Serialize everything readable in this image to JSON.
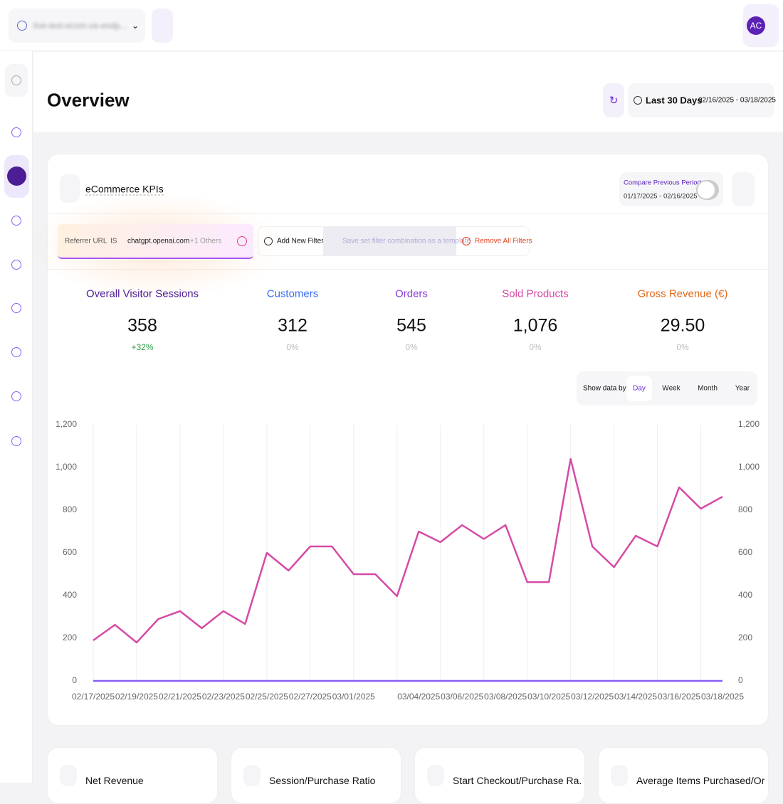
{
  "topbar": {
    "site": "live-test-ecom.va-endp...",
    "avatar": "AC"
  },
  "header": {
    "title": "Overview",
    "range": "Last 30 Days",
    "dates": "02/16/2025 - 03/18/2025"
  },
  "card": {
    "title": "eCommerce KPIs",
    "compare_label": "Compare Previous Period",
    "compare_dates": "01/17/2025 - 02/16/2025",
    "filter": {
      "field": "Referrer URL",
      "operator": "IS",
      "value": "chatgpt.openai.com",
      "more": "+1 Others"
    },
    "actions": [
      "Add New Filter",
      "Save set filter combination as a template",
      "Remove All Filters"
    ],
    "kpis": [
      {
        "label": "Overall Visitor Sessions",
        "value": "358",
        "change": "+32%",
        "color": "#4c1d95",
        "change_color": "#2e9e4a"
      },
      {
        "label": "Customers",
        "value": "312",
        "change": "0%",
        "color": "#3b6cf6",
        "change_color": "#bbbbbb"
      },
      {
        "label": "Orders",
        "value": "545",
        "change": "0%",
        "color": "#8b3fd9",
        "change_color": "#bbbbbb"
      },
      {
        "label": "Sold Products",
        "value": "1,076",
        "change": "0%",
        "color": "#d64aa6",
        "change_color": "#bbbbbb"
      },
      {
        "label": "Gross Revenue (€)",
        "value": "29.50",
        "change": "0%",
        "color": "#e06a1b",
        "change_color": "#bbbbbb"
      }
    ],
    "show_by_label": "Show data by:",
    "periods": [
      "Day",
      "Week",
      "Month",
      "Year"
    ],
    "active_period": 0
  },
  "chart_data": {
    "type": "line",
    "categories": [
      "02/17/2025",
      null,
      "02/19/2025",
      null,
      "02/21/2025",
      null,
      "02/23/2025",
      null,
      "02/25/2025",
      null,
      "02/27/2025",
      null,
      "03/01/2025",
      null,
      null,
      "03/04/2025",
      null,
      "03/06/2025",
      null,
      "03/08/2025",
      null,
      "03/10/2025",
      null,
      "03/12/2025",
      null,
      "03/14/2025",
      null,
      "03/16/2025",
      null,
      "03/18/2025"
    ],
    "series": [
      {
        "color": "#d64aa6",
        "values": [
          190,
          263,
          180,
          290,
          327,
          247,
          327,
          267,
          600,
          517,
          630,
          630,
          500,
          500,
          397,
          700,
          650,
          730,
          665,
          730,
          463,
          463,
          1040,
          630,
          533,
          680,
          630,
          907,
          807,
          863
        ]
      },
      {
        "color": "#8b5cf6",
        "values": [
          0,
          0,
          0,
          0,
          0,
          0,
          0,
          0,
          0,
          0,
          0,
          0,
          0,
          0,
          0,
          0,
          0,
          0,
          0,
          0,
          0,
          0,
          0,
          0,
          0,
          0,
          0,
          0,
          0,
          0
        ]
      }
    ],
    "ylim": [
      0,
      1200
    ],
    "yticks": [
      0,
      200,
      400,
      600,
      800,
      {
        "value": 1000,
        "label": "1,000"
      },
      {
        "value": 1200,
        "label": "1,200"
      }
    ],
    "y2lim": [
      0,
      1200
    ],
    "y2ticks": [
      0,
      200,
      400,
      600,
      800,
      {
        "value": 1000,
        "label": "1,000"
      },
      {
        "value": 1200,
        "label": "1,200"
      }
    ],
    "grid": true
  },
  "bottom_cards": [
    "Net Revenue",
    "Session/Purchase Ratio",
    "Start Checkout/Purchase Ra...",
    "Average Items Purchased/Or..."
  ]
}
